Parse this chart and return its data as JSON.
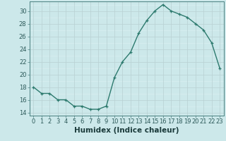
{
  "x": [
    0,
    1,
    2,
    3,
    4,
    5,
    6,
    7,
    8,
    9,
    10,
    11,
    12,
    13,
    14,
    15,
    16,
    17,
    18,
    19,
    20,
    21,
    22,
    23
  ],
  "y": [
    18,
    17,
    17,
    16,
    16,
    15,
    15,
    14.5,
    14.5,
    15,
    19.5,
    22,
    23.5,
    26.5,
    28.5,
    30,
    31,
    30,
    29.5,
    29,
    28,
    27,
    25,
    21
  ],
  "xlabel": "Humidex (Indice chaleur)",
  "ylim": [
    13.5,
    31.5
  ],
  "yticks": [
    14,
    16,
    18,
    20,
    22,
    24,
    26,
    28,
    30
  ],
  "xlim": [
    -0.5,
    23.5
  ],
  "xticks": [
    0,
    1,
    2,
    3,
    4,
    5,
    6,
    7,
    8,
    9,
    10,
    11,
    12,
    13,
    14,
    15,
    16,
    17,
    18,
    19,
    20,
    21,
    22,
    23
  ],
  "line_color": "#2d7a6e",
  "marker_color": "#2d7a6e",
  "bg_color": "#cce8ea",
  "grid_color_major": "#b8d0d2",
  "grid_color_minor": "#daeef0",
  "xlabel_fontsize": 7.5,
  "tick_fontsize": 6.0
}
